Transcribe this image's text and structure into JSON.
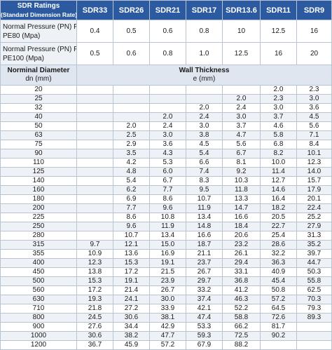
{
  "header": {
    "title": "SDR Ratings",
    "subtitle": "(Standard Dimension Rate)",
    "sdr_labels": [
      "SDR33",
      "SDR26",
      "SDR21",
      "SDR17",
      "SDR13.6",
      "SDR11",
      "SDR9"
    ]
  },
  "pressure_rows": [
    {
      "label_line1": "Normal Pressure (PN) For",
      "label_line2": "PE80 (Mpa)",
      "values": [
        "0.4",
        "0.5",
        "0.6",
        "0.8",
        "10",
        "12.5",
        "16"
      ]
    },
    {
      "label_line1": "Normal Pressure (PN) For",
      "label_line2": "PE100 (Mpa)",
      "values": [
        "0.5",
        "0.6",
        "0.8",
        "1.0",
        "12.5",
        "16",
        "20"
      ]
    }
  ],
  "subheader": {
    "dn_title": "Norminal Diameter",
    "dn_unit": "dn (mm)",
    "wt_title": "Wall Thickness",
    "wt_unit": "e (mm)"
  },
  "rows": [
    [
      "20",
      "",
      "",
      "",
      "",
      "",
      "2.0",
      "2.3"
    ],
    [
      "25",
      "",
      "",
      "",
      "",
      "2.0",
      "2.3",
      "3.0"
    ],
    [
      "32",
      "",
      "",
      "",
      "2.0",
      "2.4",
      "3.0",
      "3.6"
    ],
    [
      "40",
      "",
      "",
      "2.0",
      "2.4",
      "3.0",
      "3.7",
      "4.5"
    ],
    [
      "50",
      "",
      "2.0",
      "2.4",
      "3.0",
      "3.7",
      "4.6",
      "5.6"
    ],
    [
      "63",
      "",
      "2.5",
      "3.0",
      "3.8",
      "4.7",
      "5.8",
      "7.1"
    ],
    [
      "75",
      "",
      "2.9",
      "3.6",
      "4.5",
      "5.6",
      "6.8",
      "8.4"
    ],
    [
      "90",
      "",
      "3.5",
      "4.3",
      "5.4",
      "6.7",
      "8.2",
      "10.1"
    ],
    [
      "110",
      "",
      "4.2",
      "5.3",
      "6.6",
      "8.1",
      "10.0",
      "12.3"
    ],
    [
      "125",
      "",
      "4.8",
      "6.0",
      "7.4",
      "9.2",
      "11.4",
      "14.0"
    ],
    [
      "140",
      "",
      "5.4",
      "6.7",
      "8.3",
      "10.3",
      "12.7",
      "15.7"
    ],
    [
      "160",
      "",
      "6.2",
      "7.7",
      "9.5",
      "11.8",
      "14.6",
      "17.9"
    ],
    [
      "180",
      "",
      "6.9",
      "8.6",
      "10.7",
      "13.3",
      "16.4",
      "20.1"
    ],
    [
      "200",
      "",
      "7.7",
      "9.6",
      "11.9",
      "14.7",
      "18.2",
      "22.4"
    ],
    [
      "225",
      "",
      "8.6",
      "10.8",
      "13.4",
      "16.6",
      "20.5",
      "25.2"
    ],
    [
      "250",
      "",
      "9.6",
      "11.9",
      "14.8",
      "18.4",
      "22.7",
      "27.9"
    ],
    [
      "280",
      "",
      "10.7",
      "13.4",
      "16.6",
      "20.6",
      "25.4",
      "31.3"
    ],
    [
      "315",
      "9.7",
      "12.1",
      "15.0",
      "18.7",
      "23.2",
      "28.6",
      "35.2"
    ],
    [
      "355",
      "10.9",
      "13.6",
      "16.9",
      "21.1",
      "26.1",
      "32.2",
      "39.7"
    ],
    [
      "400",
      "12.3",
      "15.3",
      "19.1",
      "23.7",
      "29.4",
      "36.3",
      "44.7"
    ],
    [
      "450",
      "13.8",
      "17.2",
      "21.5",
      "26.7",
      "33.1",
      "40.9",
      "50.3"
    ],
    [
      "500",
      "15.3",
      "19.1",
      "23.9",
      "29.7",
      "36.8",
      "45.4",
      "55.8"
    ],
    [
      "560",
      "17.2",
      "21.4",
      "26.7",
      "33.2",
      "41.2",
      "50.8",
      "62.5"
    ],
    [
      "630",
      "19.3",
      "24.1",
      "30.0",
      "37.4",
      "46.3",
      "57.2",
      "70.3"
    ],
    [
      "710",
      "21.8",
      "27.2",
      "33.9",
      "42.1",
      "52.2",
      "64.5",
      "79.3"
    ],
    [
      "800",
      "24.5",
      "30.6",
      "38.1",
      "47.4",
      "58.8",
      "72.6",
      "89.3"
    ],
    [
      "900",
      "27.6",
      "34.4",
      "42.9",
      "53.3",
      "66.2",
      "81.7",
      ""
    ],
    [
      "1000",
      "30.6",
      "38.2",
      "47.7",
      "59.3",
      "72.5",
      "90.2",
      ""
    ],
    [
      "1200",
      "36.7",
      "45.9",
      "57.2",
      "67.9",
      "88.2",
      "",
      ""
    ]
  ]
}
